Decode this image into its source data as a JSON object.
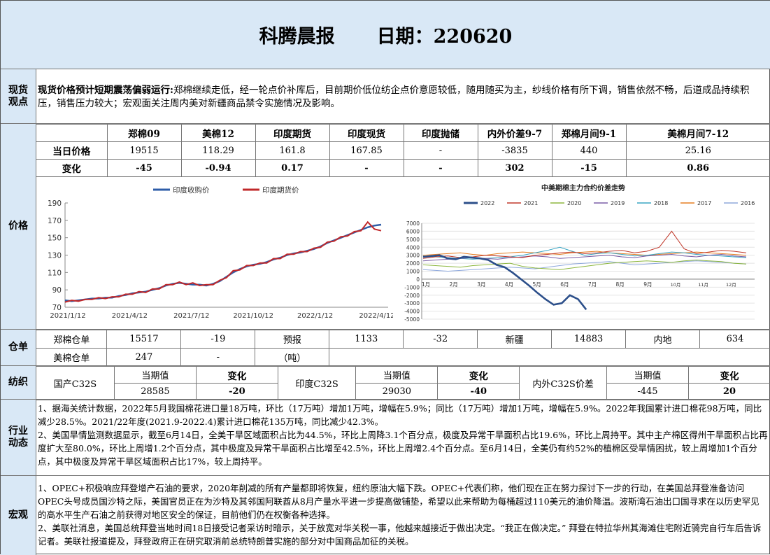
{
  "header": {
    "title": "科腾晨报",
    "date_label": "日期：220620"
  },
  "spot": {
    "label": "现货观点",
    "headline": "现货价格预计短期震荡偏弱运行:",
    "body": "郑棉继续走低，经一轮点价补库后，目前期价低位纺企点价意愿较低，随用随买为主，纱线价格有所下调，销售依然不畅，后道成品持续积压，销售压力较大；宏观面关注周内美对新疆商品禁令实施情况及影响。"
  },
  "price": {
    "label": "价格",
    "columns": [
      "郑棉09",
      "美棉12",
      "印度期货",
      "印度现货",
      "印度抛储",
      "内外价差9-7",
      "郑棉月间9-1",
      "美棉月间7-12"
    ],
    "rows": [
      {
        "name": "当日价格",
        "values": [
          "19515",
          "118.29",
          "161.8",
          "167.85",
          "-",
          "-3835",
          "440",
          "25.16"
        ]
      },
      {
        "name": "变化",
        "values": [
          "-45",
          "-0.94",
          "0.17",
          "-",
          "-",
          "302",
          "-15",
          "0.86"
        ]
      }
    ]
  },
  "chart_data": [
    {
      "type": "line",
      "legend": [
        "印度收购价",
        "印度期货价"
      ],
      "colors": [
        "#2e5da8",
        "#c0282a"
      ],
      "x_ticks": [
        "2021/1/12",
        "2021/4/12",
        "2021/7/12",
        "2021/10/12",
        "2022/1/12",
        "2022/4/12"
      ],
      "y_ticks": [
        70,
        90,
        110,
        130,
        150,
        170,
        190
      ],
      "ylim": [
        70,
        190
      ],
      "series": [
        {
          "name": "印度收购价",
          "values": [
            78,
            77,
            78,
            79,
            80,
            80,
            81,
            81,
            83,
            84,
            86,
            87,
            88,
            90,
            92,
            95,
            97,
            98,
            97,
            96,
            96,
            95,
            97,
            100,
            105,
            110,
            114,
            117,
            119,
            120,
            122,
            125,
            127,
            130,
            132,
            133,
            135,
            137,
            140,
            144,
            147,
            150,
            153,
            156,
            159,
            162,
            164,
            165
          ]
        },
        {
          "name": "印度期货价",
          "values": [
            76,
            78,
            77,
            79,
            79,
            81,
            80,
            82,
            82,
            85,
            85,
            88,
            87,
            91,
            91,
            96,
            96,
            99,
            96,
            98,
            95,
            96,
            96,
            101,
            104,
            112,
            113,
            118,
            118,
            121,
            121,
            126,
            126,
            131,
            131,
            134,
            134,
            138,
            139,
            145,
            146,
            151,
            152,
            157,
            158,
            168,
            160,
            158
          ]
        }
      ]
    },
    {
      "type": "line",
      "title": "中美期棉主力合约价差走势",
      "legend": [
        "2022",
        "2021",
        "2020",
        "2019",
        "2018",
        "2017",
        "2016"
      ],
      "colors": [
        "#2c4f8a",
        "#c0392b",
        "#8db73f",
        "#7b5ea7",
        "#3aa6c4",
        "#e67e22",
        "#8fa9dc"
      ],
      "y_ticks": [
        7000,
        6000,
        5000,
        4000,
        3000,
        2000,
        1000,
        0,
        -1000,
        -2000,
        -3000,
        -4000,
        -5000
      ],
      "ylim": [
        -5000,
        7000
      ],
      "x_ticks": [
        "1月",
        "2月",
        "3月",
        "4月",
        "5月",
        "6月",
        "7月",
        "8月",
        "9月",
        "10月",
        "11月",
        "12月"
      ],
      "series": [
        {
          "name": "2022",
          "values": [
            2800,
            2900,
            3000,
            2600,
            2500,
            2800,
            2700,
            2600,
            2400,
            1800,
            1500,
            800,
            0,
            -800,
            -1700,
            -2500,
            -3200,
            -3000,
            -2000,
            -2500,
            -3800
          ]
        },
        {
          "name": "2021",
          "values": [
            2600,
            2800,
            2900,
            2700,
            2800,
            3000,
            2900,
            2800,
            2700,
            3000,
            3100,
            3300,
            3400,
            3200,
            3300,
            3500,
            3600,
            3300,
            3500,
            4000,
            6000,
            3800,
            3200,
            3400,
            3600,
            3500,
            3300
          ]
        },
        {
          "name": "2020",
          "values": [
            1800,
            1700,
            1600,
            1500,
            1700,
            1800,
            1900,
            2000,
            1600,
            1400,
            1300,
            1200,
            1400,
            1600,
            1800,
            2000,
            2100,
            2200,
            2300,
            2200,
            2100,
            2300,
            2400,
            2300,
            2200,
            2000,
            1900
          ]
        },
        {
          "name": "2019",
          "values": [
            2300,
            2400,
            2500,
            2600,
            2700,
            2600,
            2500,
            2700,
            2800,
            2900,
            2800,
            2600,
            2700,
            2800,
            2900,
            3000,
            2800,
            2700,
            2900,
            3000,
            3100,
            2900,
            2800,
            3000,
            3100,
            2900,
            2800
          ]
        },
        {
          "name": "2018",
          "values": [
            2900,
            2800,
            2700,
            2600,
            2500,
            2600,
            2700,
            2800,
            3000,
            3300,
            3600,
            4000,
            3500,
            3000,
            3200,
            3300,
            3100,
            2900,
            3000,
            3200,
            3400,
            3300,
            3100,
            3000,
            2900,
            2800,
            2700
          ]
        },
        {
          "name": "2017",
          "values": [
            3000,
            3100,
            3200,
            3300,
            3100,
            3000,
            3200,
            3300,
            3400,
            3300,
            3200,
            3100,
            3300,
            3400,
            3500,
            3300,
            3200,
            3100,
            3000,
            3100,
            3200,
            3300,
            3400,
            3300,
            3200,
            3100,
            3000
          ]
        },
        {
          "name": "2016",
          "values": [
            1200,
            1100,
            1000,
            1100,
            1200,
            1300,
            1400,
            1500,
            1400,
            1300,
            1500,
            1700,
            1900,
            2000,
            2100,
            2200,
            2000,
            1800,
            1900,
            2000,
            2100,
            2200,
            2300,
            2200,
            2100,
            2000,
            1900
          ]
        }
      ]
    }
  ],
  "warehouse": {
    "label": "仓单",
    "row1": [
      "郑棉仓单",
      "15517",
      "-19",
      "预报",
      "1133",
      "-32",
      "新疆",
      "14883",
      "内地",
      "634"
    ],
    "row2": [
      "美棉仓单",
      "247",
      "-",
      "（吨）"
    ]
  },
  "yarn": {
    "label": "纺织",
    "col_cur": "当期值",
    "col_chg": "变化",
    "groups": [
      {
        "name": "国产C32S",
        "value": "28585",
        "change": "-20"
      },
      {
        "name": "印度C32S",
        "value": "29030",
        "change": "-40"
      },
      {
        "name": "内外C32S价差",
        "value": "-445",
        "change": "20"
      }
    ]
  },
  "industry": {
    "label": "行业动态",
    "p1": "1、据海关统计数据，2022年5月我国棉花进口量18万吨，环比（17万吨）增加1万吨，增幅在5.9%；同比（17万吨）增加1万吨，增幅在5.9%。2022年我国累计进口棉花98万吨，同比减少28.5%。2021/22年度(2021.9-2022.4)累计进口棉花135万吨，同比减少42.3%。",
    "p2": "2、美国旱情监测数据显示，截至6月14日，全美干旱区域面积占比为44.5%，环比上周降3.1个百分点，极度及异常干旱面积占比19.6%，环比上周持平。其中主产棉区得州干旱面积占比再度扩大至80.0%，环比上周增1.2个百分点，其中极度及异常干旱面积占比增至42.5%，环比上周增2.4个百分点。至6月14日，全美仍有约52%的植棉区受旱情困扰，较上周增加1个百分点，其中极度及异常干旱区域面积占比17%，较上周持平。"
  },
  "macro": {
    "label": "宏观",
    "p1": "1、OPEC+积极响应拜登增产石油的要求，2020年削减的所有产量都即将恢复，纽约原油大幅下跌。OPEC+代表们称，他们现在正在努力探讨下一步的行动，在美国总拜登准备访问OPEC头号成员国沙特之际，美国官员正在为沙特及其邻国阿联酋从8月产量水平进一步提高做铺垫，希望以此来帮助为每桶超过110美元的油价降温。波斯湾石油出口国寻求在以历史罕见的高水平生产石油之前获得对地区安全的保证，目前他们仍在权衡各种选择。",
    "p2": "2、美联社消息，美国总统拜登当地时间18日接受记者采访时暗示，关于放宽对华关税一事，他越来越接近于做出决定。“我正在做决定。” 拜登在特拉华州其海滩住宅附近骑完自行车后告诉记者。美联社报道提及，拜登政府正在研究取消前总统特朗普实施的部分对中国商品加征的关税。"
  }
}
